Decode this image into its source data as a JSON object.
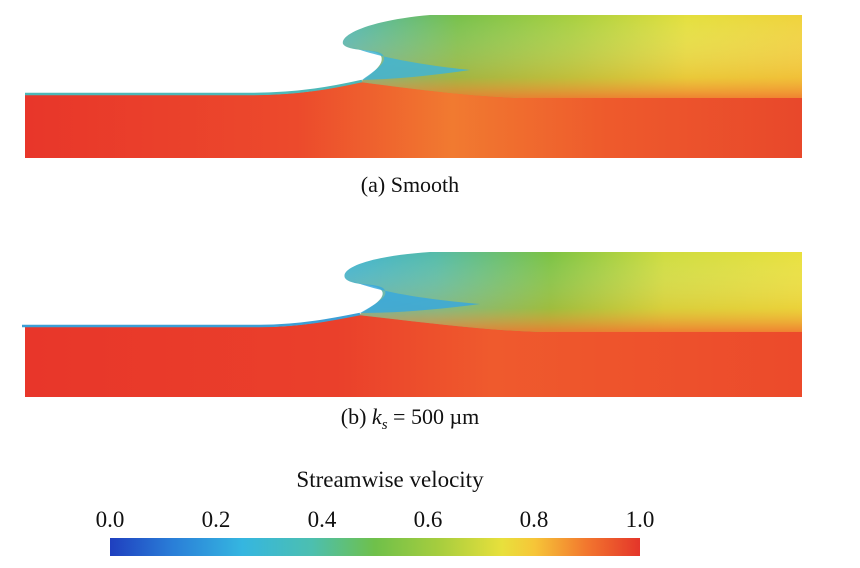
{
  "panels": [
    {
      "id": "a",
      "caption_prefix": "(a) Smooth",
      "caption_var": "",
      "caption_sub": "",
      "caption_suffix": ""
    },
    {
      "id": "b",
      "caption_prefix": "(b) ",
      "caption_var": "k",
      "caption_sub": "s",
      "caption_suffix": " = 500 µm"
    }
  ],
  "colorbar": {
    "title": "Streamwise velocity",
    "range": [
      0.0,
      1.0
    ],
    "ticks": [
      "0.0",
      "0.2",
      "0.4",
      "0.6",
      "0.8",
      "1.0"
    ],
    "colormap": "rainbow",
    "stops": [
      "#1f3fbf",
      "#2aa8e0",
      "#52bfa8",
      "#7cc242",
      "#d8e040",
      "#f5e33a",
      "#f57f2a",
      "#e83a2a"
    ]
  },
  "colors": {
    "liquid_core": "#e8432c",
    "liquid_mid": "#f06a2e",
    "cavity_gas": "#3fb0d8",
    "upper_green": "#6fbf40",
    "upper_yellow": "#e6e23c"
  }
}
